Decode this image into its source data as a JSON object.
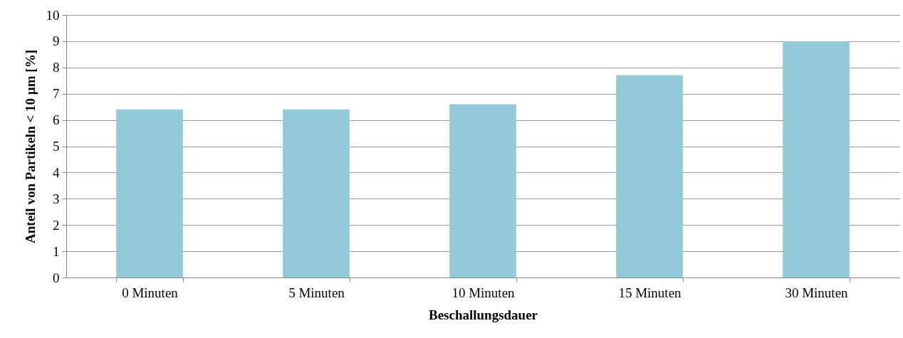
{
  "chart_data": {
    "type": "bar",
    "xlabel": "Beschallungsdauer",
    "ylabel": "Anteil von Partikeln < 10 µm [%]",
    "categories": [
      "0 Minuten",
      "5 Minuten",
      "10 Minuten",
      "15 Minuten",
      "30 Minuten"
    ],
    "values": [
      6.4,
      6.4,
      6.6,
      7.7,
      9.0
    ],
    "color": "#92cad8",
    "ylim": [
      0,
      10
    ],
    "yticks": [
      0,
      1,
      2,
      3,
      4,
      5,
      6,
      7,
      8,
      9,
      10
    ],
    "grid": "y"
  }
}
